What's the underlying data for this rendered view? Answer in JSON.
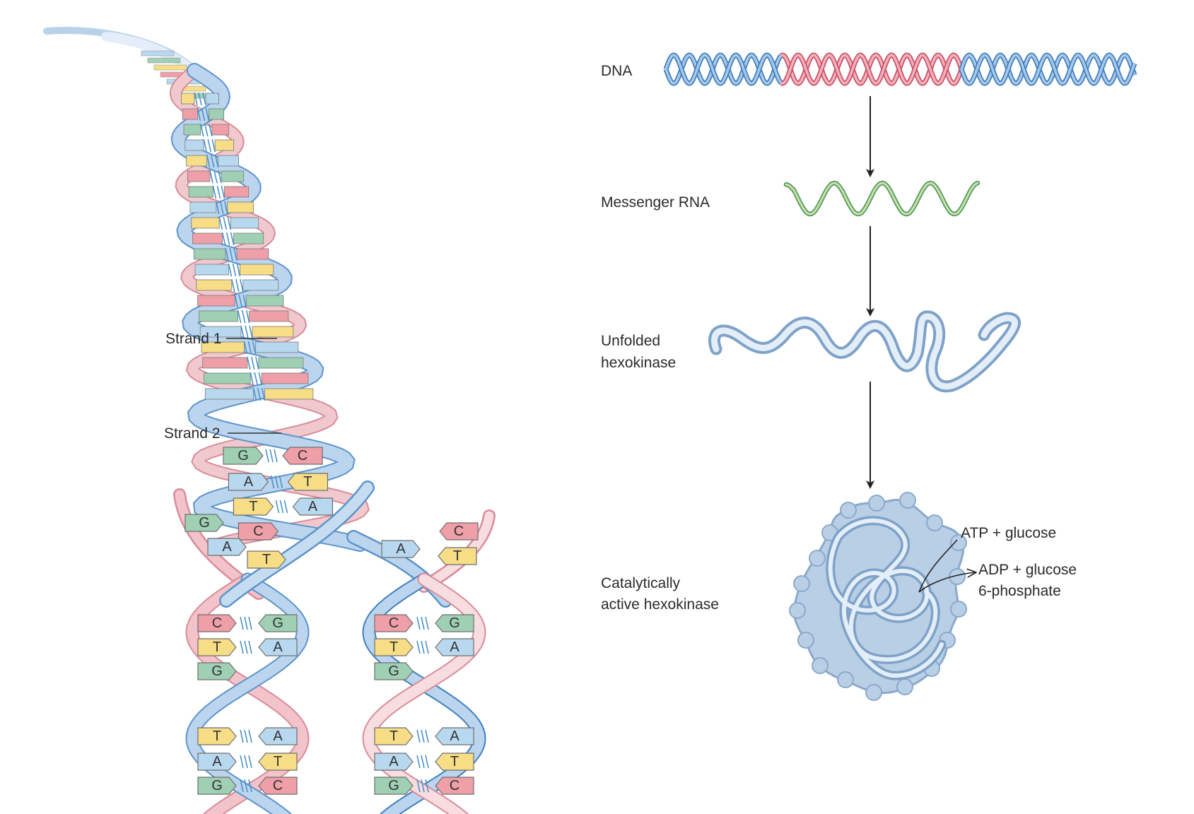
{
  "labels": {
    "strand1": "Strand 1",
    "strand2": "Strand 2",
    "dna": "DNA",
    "mrna": "Messenger RNA",
    "unfolded_line1": "Unfolded",
    "unfolded_line2": "hexokinase",
    "active_line1": "Catalytically",
    "active_line2": "active hexokinase",
    "reactant": "ATP + glucose",
    "product_line1": "ADP + glucose",
    "product_line2": "6-phosphate"
  },
  "colors": {
    "backbone_blue": "#8fb4db",
    "backbone_blue_dark": "#3f7fbf",
    "backbone_pink": "#e8a3ab",
    "backbone_pink_dark": "#cf4f66",
    "rna_green": "#4e9a5e",
    "rna_light": "#cfe0a8",
    "protein_fill": "#b9cfe6",
    "protein_edge": "#7fa2c8",
    "G": "#9fd0b4",
    "C": "#ef9fa8",
    "A": "#b8d8ef",
    "T": "#f6dd86"
  },
  "icons": {
    "arrow": "down-arrow-icon",
    "protein": "folded-protein-icon"
  },
  "bases": {
    "upper_pairs": [
      {
        "left": "G",
        "right": "C"
      },
      {
        "left": "A",
        "right": "T"
      },
      {
        "left": "T",
        "right": "A"
      },
      {
        "left": "C",
        "right": ""
      }
    ],
    "left_fork": [
      {
        "text": "G"
      },
      {
        "text": "A"
      },
      {
        "text": "T"
      }
    ],
    "right_fork": [
      {
        "text": "C"
      },
      {
        "text": "A"
      },
      {
        "text": "T"
      }
    ],
    "left_daughter": [
      {
        "left": "C",
        "right": "G"
      },
      {
        "left": "T",
        "right": "A"
      },
      {
        "left": "G",
        "right": ""
      },
      {
        "left": "T",
        "right": "A"
      },
      {
        "left": "A",
        "right": "T"
      },
      {
        "left": "G",
        "right": "C"
      }
    ],
    "right_daughter": [
      {
        "left": "C",
        "right": "G"
      },
      {
        "left": "T",
        "right": "A"
      },
      {
        "left": "G",
        "right": ""
      },
      {
        "left": "T",
        "right": "A"
      },
      {
        "left": "A",
        "right": "T"
      },
      {
        "left": "G",
        "right": "C"
      }
    ]
  }
}
